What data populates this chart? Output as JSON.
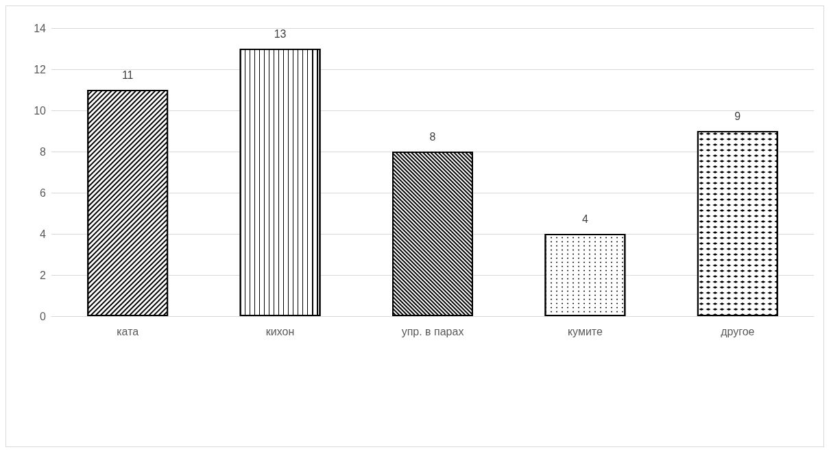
{
  "chart_data": {
    "type": "bar",
    "categories": [
      "ката",
      "кихон",
      "упр. в парах",
      "кумите",
      "другое"
    ],
    "values": [
      11,
      13,
      8,
      4,
      9
    ],
    "colors": [
      "#ffffff",
      "#ffffff",
      "#ffffff",
      "#ffffff",
      "#ffffff"
    ],
    "ylim": [
      0,
      14
    ],
    "yticks": [
      0,
      2,
      4,
      6,
      8,
      10,
      12,
      14
    ],
    "grid": "y",
    "data_labels": true
  }
}
